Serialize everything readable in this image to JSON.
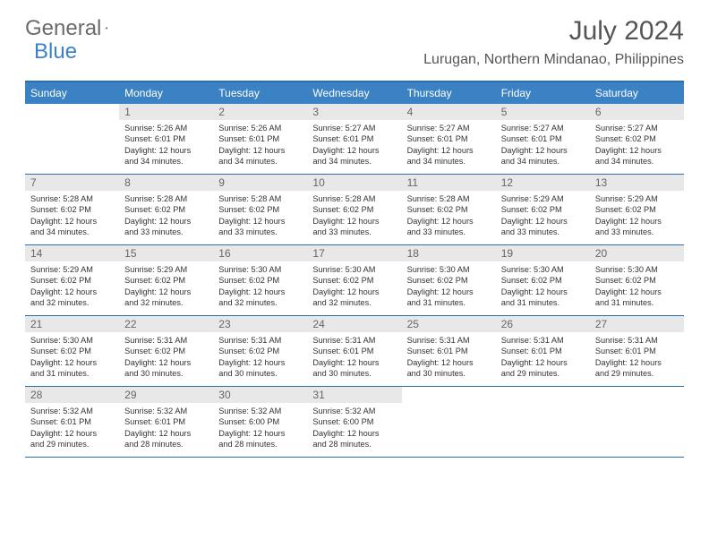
{
  "logo": {
    "word1": "General",
    "word2": "Blue"
  },
  "title": "July 2024",
  "location": "Lurugan, Northern Mindanao, Philippines",
  "colors": {
    "header_bg": "#3b82c4",
    "border": "#2f6ea8",
    "daynum_bg": "#e8e8e8",
    "text": "#333333",
    "muted": "#666666",
    "title_color": "#555555"
  },
  "day_names": [
    "Sunday",
    "Monday",
    "Tuesday",
    "Wednesday",
    "Thursday",
    "Friday",
    "Saturday"
  ],
  "weeks": [
    [
      null,
      {
        "n": "1",
        "sr": "Sunrise: 5:26 AM",
        "ss": "Sunset: 6:01 PM",
        "d1": "Daylight: 12 hours",
        "d2": "and 34 minutes."
      },
      {
        "n": "2",
        "sr": "Sunrise: 5:26 AM",
        "ss": "Sunset: 6:01 PM",
        "d1": "Daylight: 12 hours",
        "d2": "and 34 minutes."
      },
      {
        "n": "3",
        "sr": "Sunrise: 5:27 AM",
        "ss": "Sunset: 6:01 PM",
        "d1": "Daylight: 12 hours",
        "d2": "and 34 minutes."
      },
      {
        "n": "4",
        "sr": "Sunrise: 5:27 AM",
        "ss": "Sunset: 6:01 PM",
        "d1": "Daylight: 12 hours",
        "d2": "and 34 minutes."
      },
      {
        "n": "5",
        "sr": "Sunrise: 5:27 AM",
        "ss": "Sunset: 6:01 PM",
        "d1": "Daylight: 12 hours",
        "d2": "and 34 minutes."
      },
      {
        "n": "6",
        "sr": "Sunrise: 5:27 AM",
        "ss": "Sunset: 6:02 PM",
        "d1": "Daylight: 12 hours",
        "d2": "and 34 minutes."
      }
    ],
    [
      {
        "n": "7",
        "sr": "Sunrise: 5:28 AM",
        "ss": "Sunset: 6:02 PM",
        "d1": "Daylight: 12 hours",
        "d2": "and 34 minutes."
      },
      {
        "n": "8",
        "sr": "Sunrise: 5:28 AM",
        "ss": "Sunset: 6:02 PM",
        "d1": "Daylight: 12 hours",
        "d2": "and 33 minutes."
      },
      {
        "n": "9",
        "sr": "Sunrise: 5:28 AM",
        "ss": "Sunset: 6:02 PM",
        "d1": "Daylight: 12 hours",
        "d2": "and 33 minutes."
      },
      {
        "n": "10",
        "sr": "Sunrise: 5:28 AM",
        "ss": "Sunset: 6:02 PM",
        "d1": "Daylight: 12 hours",
        "d2": "and 33 minutes."
      },
      {
        "n": "11",
        "sr": "Sunrise: 5:28 AM",
        "ss": "Sunset: 6:02 PM",
        "d1": "Daylight: 12 hours",
        "d2": "and 33 minutes."
      },
      {
        "n": "12",
        "sr": "Sunrise: 5:29 AM",
        "ss": "Sunset: 6:02 PM",
        "d1": "Daylight: 12 hours",
        "d2": "and 33 minutes."
      },
      {
        "n": "13",
        "sr": "Sunrise: 5:29 AM",
        "ss": "Sunset: 6:02 PM",
        "d1": "Daylight: 12 hours",
        "d2": "and 33 minutes."
      }
    ],
    [
      {
        "n": "14",
        "sr": "Sunrise: 5:29 AM",
        "ss": "Sunset: 6:02 PM",
        "d1": "Daylight: 12 hours",
        "d2": "and 32 minutes."
      },
      {
        "n": "15",
        "sr": "Sunrise: 5:29 AM",
        "ss": "Sunset: 6:02 PM",
        "d1": "Daylight: 12 hours",
        "d2": "and 32 minutes."
      },
      {
        "n": "16",
        "sr": "Sunrise: 5:30 AM",
        "ss": "Sunset: 6:02 PM",
        "d1": "Daylight: 12 hours",
        "d2": "and 32 minutes."
      },
      {
        "n": "17",
        "sr": "Sunrise: 5:30 AM",
        "ss": "Sunset: 6:02 PM",
        "d1": "Daylight: 12 hours",
        "d2": "and 32 minutes."
      },
      {
        "n": "18",
        "sr": "Sunrise: 5:30 AM",
        "ss": "Sunset: 6:02 PM",
        "d1": "Daylight: 12 hours",
        "d2": "and 31 minutes."
      },
      {
        "n": "19",
        "sr": "Sunrise: 5:30 AM",
        "ss": "Sunset: 6:02 PM",
        "d1": "Daylight: 12 hours",
        "d2": "and 31 minutes."
      },
      {
        "n": "20",
        "sr": "Sunrise: 5:30 AM",
        "ss": "Sunset: 6:02 PM",
        "d1": "Daylight: 12 hours",
        "d2": "and 31 minutes."
      }
    ],
    [
      {
        "n": "21",
        "sr": "Sunrise: 5:30 AM",
        "ss": "Sunset: 6:02 PM",
        "d1": "Daylight: 12 hours",
        "d2": "and 31 minutes."
      },
      {
        "n": "22",
        "sr": "Sunrise: 5:31 AM",
        "ss": "Sunset: 6:02 PM",
        "d1": "Daylight: 12 hours",
        "d2": "and 30 minutes."
      },
      {
        "n": "23",
        "sr": "Sunrise: 5:31 AM",
        "ss": "Sunset: 6:02 PM",
        "d1": "Daylight: 12 hours",
        "d2": "and 30 minutes."
      },
      {
        "n": "24",
        "sr": "Sunrise: 5:31 AM",
        "ss": "Sunset: 6:01 PM",
        "d1": "Daylight: 12 hours",
        "d2": "and 30 minutes."
      },
      {
        "n": "25",
        "sr": "Sunrise: 5:31 AM",
        "ss": "Sunset: 6:01 PM",
        "d1": "Daylight: 12 hours",
        "d2": "and 30 minutes."
      },
      {
        "n": "26",
        "sr": "Sunrise: 5:31 AM",
        "ss": "Sunset: 6:01 PM",
        "d1": "Daylight: 12 hours",
        "d2": "and 29 minutes."
      },
      {
        "n": "27",
        "sr": "Sunrise: 5:31 AM",
        "ss": "Sunset: 6:01 PM",
        "d1": "Daylight: 12 hours",
        "d2": "and 29 minutes."
      }
    ],
    [
      {
        "n": "28",
        "sr": "Sunrise: 5:32 AM",
        "ss": "Sunset: 6:01 PM",
        "d1": "Daylight: 12 hours",
        "d2": "and 29 minutes."
      },
      {
        "n": "29",
        "sr": "Sunrise: 5:32 AM",
        "ss": "Sunset: 6:01 PM",
        "d1": "Daylight: 12 hours",
        "d2": "and 28 minutes."
      },
      {
        "n": "30",
        "sr": "Sunrise: 5:32 AM",
        "ss": "Sunset: 6:00 PM",
        "d1": "Daylight: 12 hours",
        "d2": "and 28 minutes."
      },
      {
        "n": "31",
        "sr": "Sunrise: 5:32 AM",
        "ss": "Sunset: 6:00 PM",
        "d1": "Daylight: 12 hours",
        "d2": "and 28 minutes."
      },
      null,
      null,
      null
    ]
  ]
}
